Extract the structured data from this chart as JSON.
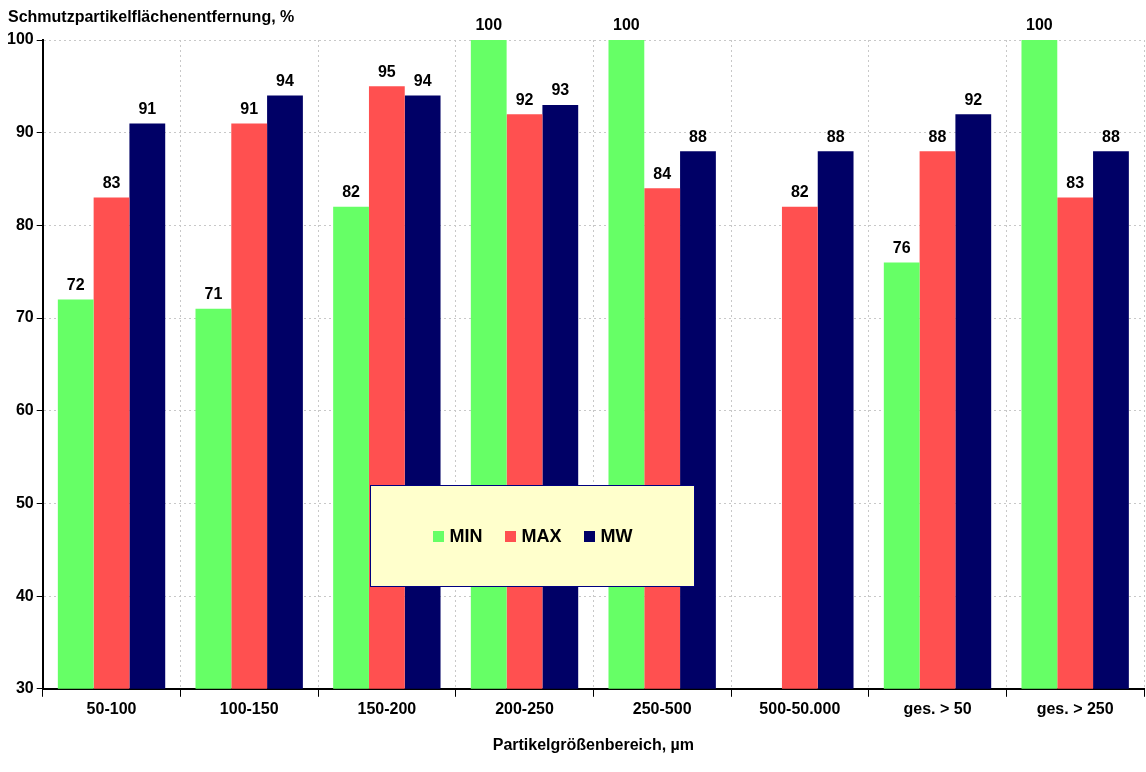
{
  "chart_data": {
    "type": "bar",
    "ylabel": "Schmutzpartikelflächenentfernung, %",
    "xlabel": "Partikelgrößenbereich, µm",
    "categories": [
      "50-100",
      "100-150",
      "150-200",
      "200-250",
      "250-500",
      "500-50.000",
      "ges. > 50",
      "ges. > 250"
    ],
    "series": [
      {
        "name": "MIN",
        "color": "#66ff66",
        "values": [
          72,
          71,
          82,
          100,
          100,
          null,
          76,
          100
        ]
      },
      {
        "name": "MAX",
        "color": "#ff5050",
        "values": [
          83,
          91,
          95,
          92,
          84,
          82,
          88,
          83
        ]
      },
      {
        "name": "MW",
        "color": "#000066",
        "values": [
          91,
          94,
          94,
          93,
          88,
          88,
          92,
          88
        ]
      }
    ],
    "ylim": [
      30,
      100
    ],
    "yticks": [
      30,
      40,
      50,
      60,
      70,
      80,
      90,
      100
    ],
    "grid": true,
    "legend": "center",
    "data_labels": true
  }
}
